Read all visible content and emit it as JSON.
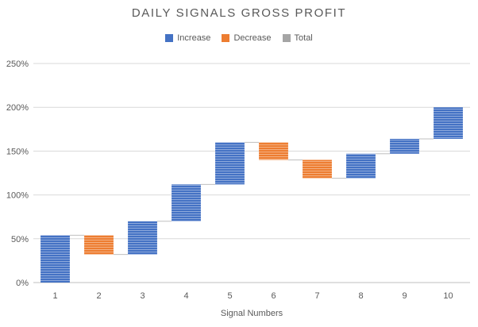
{
  "chart_data": {
    "type": "bar",
    "subtype": "waterfall",
    "title": "DAILY SIGNALS GROSS PROFIT",
    "xlabel": "Signal Numbers",
    "ylabel": "",
    "ylim": [
      0,
      250
    ],
    "y_unit": "%",
    "yticks": [
      "0%",
      "50%",
      "100%",
      "150%",
      "200%",
      "250%"
    ],
    "categories": [
      "1",
      "2",
      "3",
      "4",
      "5",
      "6",
      "7",
      "8",
      "9",
      "10"
    ],
    "values": [
      54,
      -22,
      38,
      42,
      48,
      -20,
      -21,
      28,
      17,
      36
    ],
    "types": [
      "increase",
      "decrease",
      "increase",
      "increase",
      "increase",
      "decrease",
      "decrease",
      "increase",
      "increase",
      "increase"
    ],
    "legend": [
      {
        "key": "increase",
        "label": "Increase",
        "color": "#4472c4"
      },
      {
        "key": "decrease",
        "label": "Decrease",
        "color": "#ed7d31"
      },
      {
        "key": "total",
        "label": "Total",
        "color": "#a5a5a5"
      }
    ],
    "grid": true,
    "legend_position": "top"
  }
}
